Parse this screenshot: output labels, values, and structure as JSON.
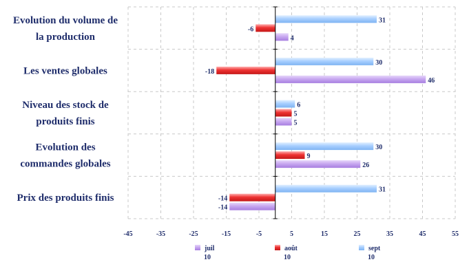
{
  "chart_data": {
    "type": "bar",
    "orientation": "horizontal",
    "categories": [
      [
        "Evolution du volume de",
        "la production"
      ],
      [
        "Les ventes globales"
      ],
      [
        "Niveau des stock de",
        "produits finis"
      ],
      [
        "Evolution des",
        "commandes globales"
      ],
      [
        "Prix des produits finis"
      ]
    ],
    "series": [
      {
        "name": "juil 10",
        "legend_lines": [
          "juil",
          "10"
        ],
        "color": "#c8a8f0",
        "values": [
          4,
          46,
          5,
          26,
          -14
        ]
      },
      {
        "name": "août 10",
        "legend_lines": [
          "août",
          "10"
        ],
        "color": "#ee3333",
        "values": [
          -6,
          -18,
          5,
          9,
          -14
        ]
      },
      {
        "name": "sept 10",
        "legend_lines": [
          "sept",
          "10"
        ],
        "color": "#a8cfff",
        "values": [
          31,
          30,
          6,
          30,
          31
        ]
      }
    ],
    "xlim": [
      -45,
      55
    ],
    "xticks": [
      -45,
      -35,
      -25,
      -15,
      -5,
      5,
      15,
      25,
      35,
      45,
      55
    ],
    "grid": true,
    "legend_position": "bottom"
  }
}
